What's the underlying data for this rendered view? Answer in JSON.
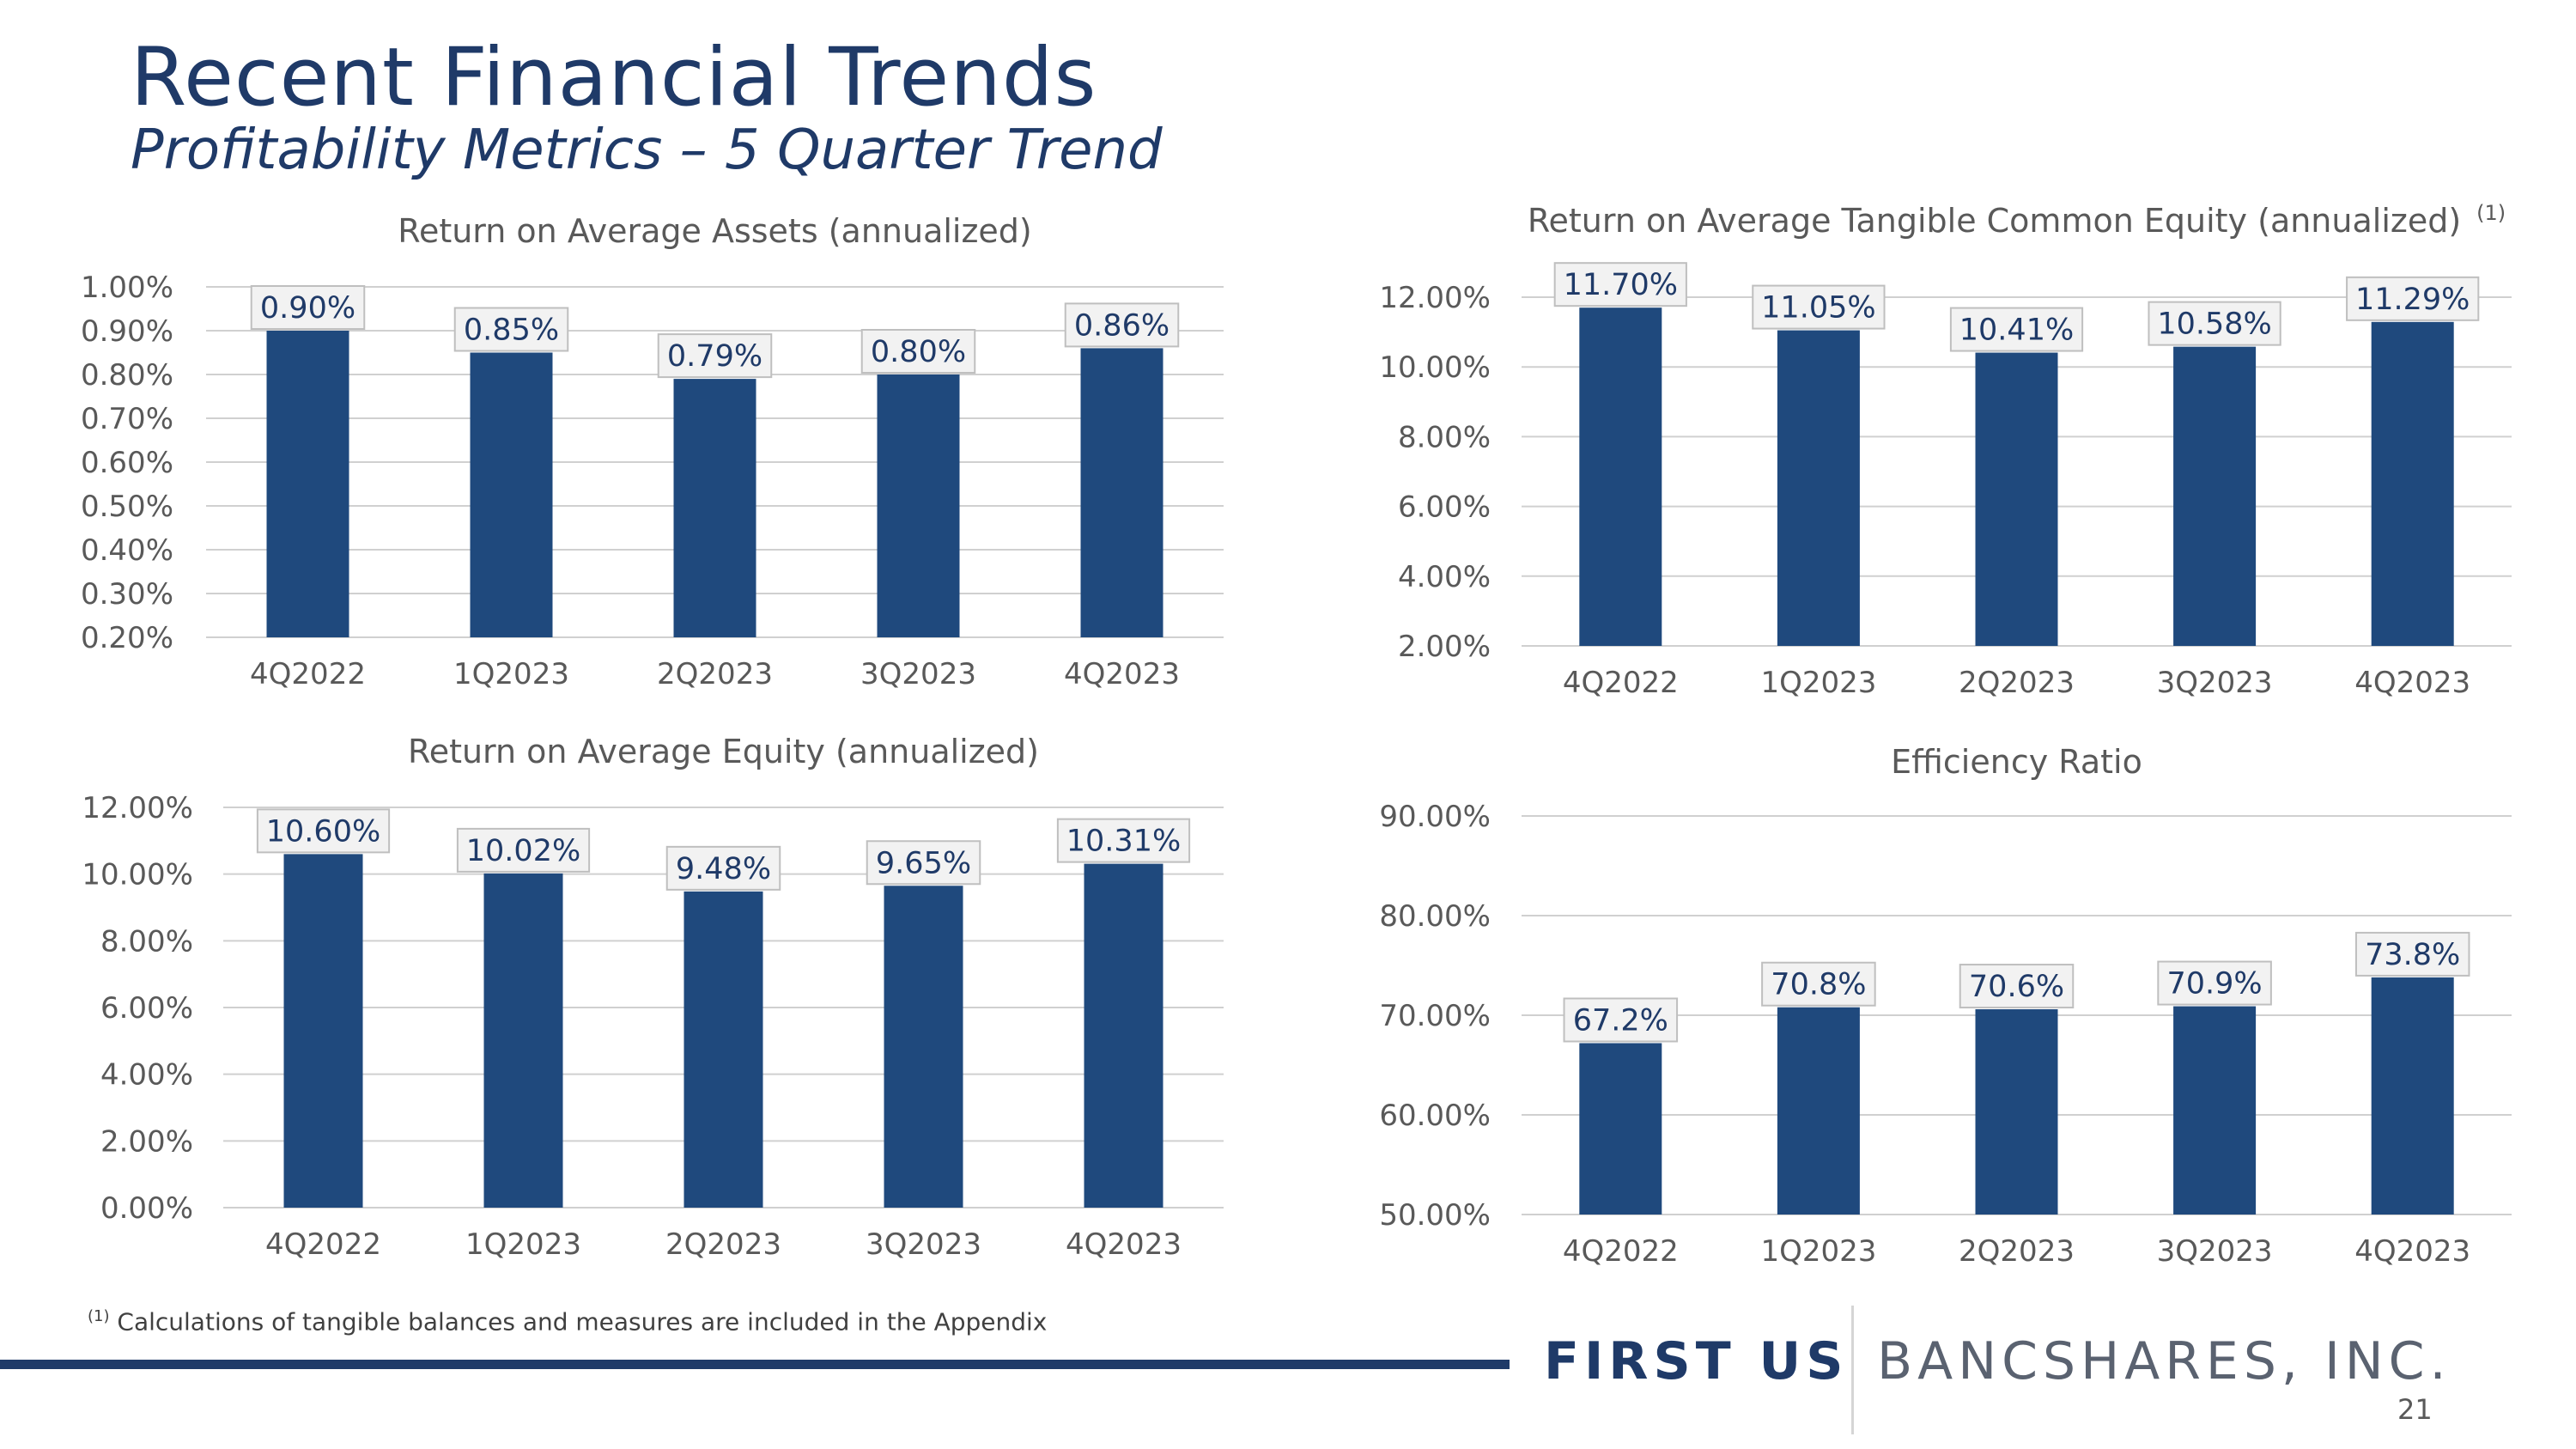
{
  "page": {
    "title": "Recent Financial Trends",
    "subtitle": "Profitability Metrics – 5 Quarter Trend",
    "footnote_marker": "(1)",
    "footnote_text": " Calculations of tangible balances and measures are included in the Appendix",
    "logo_first": "FIRST US",
    "logo_rest": "BANCSHARES, INC.",
    "page_number": "21"
  },
  "colors": {
    "bar": "#1f497d",
    "title": "#1f3a68",
    "grid": "#d0d0d0"
  },
  "chart_data": [
    {
      "id": "roaa",
      "type": "bar",
      "title": "Return on Average Assets (annualized)",
      "title_superscript": "",
      "categories": [
        "4Q2022",
        "1Q2023",
        "2Q2023",
        "3Q2023",
        "4Q2023"
      ],
      "values": [
        0.9,
        0.85,
        0.79,
        0.8,
        0.86
      ],
      "data_labels": [
        "0.90%",
        "0.85%",
        "0.79%",
        "0.80%",
        "0.86%"
      ],
      "ylim": [
        0.2,
        1.0
      ],
      "yticks": [
        0.2,
        0.3,
        0.4,
        0.5,
        0.6,
        0.7,
        0.8,
        0.9,
        1.0
      ],
      "ytick_labels": [
        "0.20%",
        "0.30%",
        "0.40%",
        "0.50%",
        "0.60%",
        "0.70%",
        "0.80%",
        "0.90%",
        "1.00%"
      ],
      "xlabel": "",
      "ylabel": "",
      "grid": true,
      "legend": "none"
    },
    {
      "id": "rotce",
      "type": "bar",
      "title": "Return on Average Tangible Common Equity (annualized)",
      "title_superscript": "(1)",
      "categories": [
        "4Q2022",
        "1Q2023",
        "2Q2023",
        "3Q2023",
        "4Q2023"
      ],
      "values": [
        11.7,
        11.05,
        10.41,
        10.58,
        11.29
      ],
      "data_labels": [
        "11.70%",
        "11.05%",
        "10.41%",
        "10.58%",
        "11.29%"
      ],
      "ylim": [
        2.0,
        12.0
      ],
      "yticks": [
        2,
        4,
        6,
        8,
        10,
        12
      ],
      "ytick_labels": [
        "2.00%",
        "4.00%",
        "6.00%",
        "8.00%",
        "10.00%",
        "12.00%"
      ],
      "xlabel": "",
      "ylabel": "",
      "grid": true,
      "legend": "none"
    },
    {
      "id": "roae",
      "type": "bar",
      "title": "Return on Average Equity (annualized)",
      "title_superscript": "",
      "categories": [
        "4Q2022",
        "1Q2023",
        "2Q2023",
        "3Q2023",
        "4Q2023"
      ],
      "values": [
        10.6,
        10.02,
        9.48,
        9.65,
        10.31
      ],
      "data_labels": [
        "10.60%",
        "10.02%",
        "9.48%",
        "9.65%",
        "10.31%"
      ],
      "ylim": [
        0.0,
        12.0
      ],
      "yticks": [
        0,
        2,
        4,
        6,
        8,
        10,
        12
      ],
      "ytick_labels": [
        "0.00%",
        "2.00%",
        "4.00%",
        "6.00%",
        "8.00%",
        "10.00%",
        "12.00%"
      ],
      "xlabel": "",
      "ylabel": "",
      "grid": true,
      "legend": "none"
    },
    {
      "id": "efficiency",
      "type": "bar",
      "title": "Efficiency Ratio",
      "title_superscript": "",
      "categories": [
        "4Q2022",
        "1Q2023",
        "2Q2023",
        "3Q2023",
        "4Q2023"
      ],
      "values": [
        67.2,
        70.8,
        70.6,
        70.9,
        73.8
      ],
      "data_labels": [
        "67.2%",
        "70.8%",
        "70.6%",
        "70.9%",
        "73.8%"
      ],
      "ylim": [
        50.0,
        90.0
      ],
      "yticks": [
        50,
        60,
        70,
        80,
        90
      ],
      "ytick_labels": [
        "50.00%",
        "60.00%",
        "70.00%",
        "80.00%",
        "90.00%"
      ],
      "xlabel": "",
      "ylabel": "",
      "grid": true,
      "legend": "none"
    }
  ]
}
